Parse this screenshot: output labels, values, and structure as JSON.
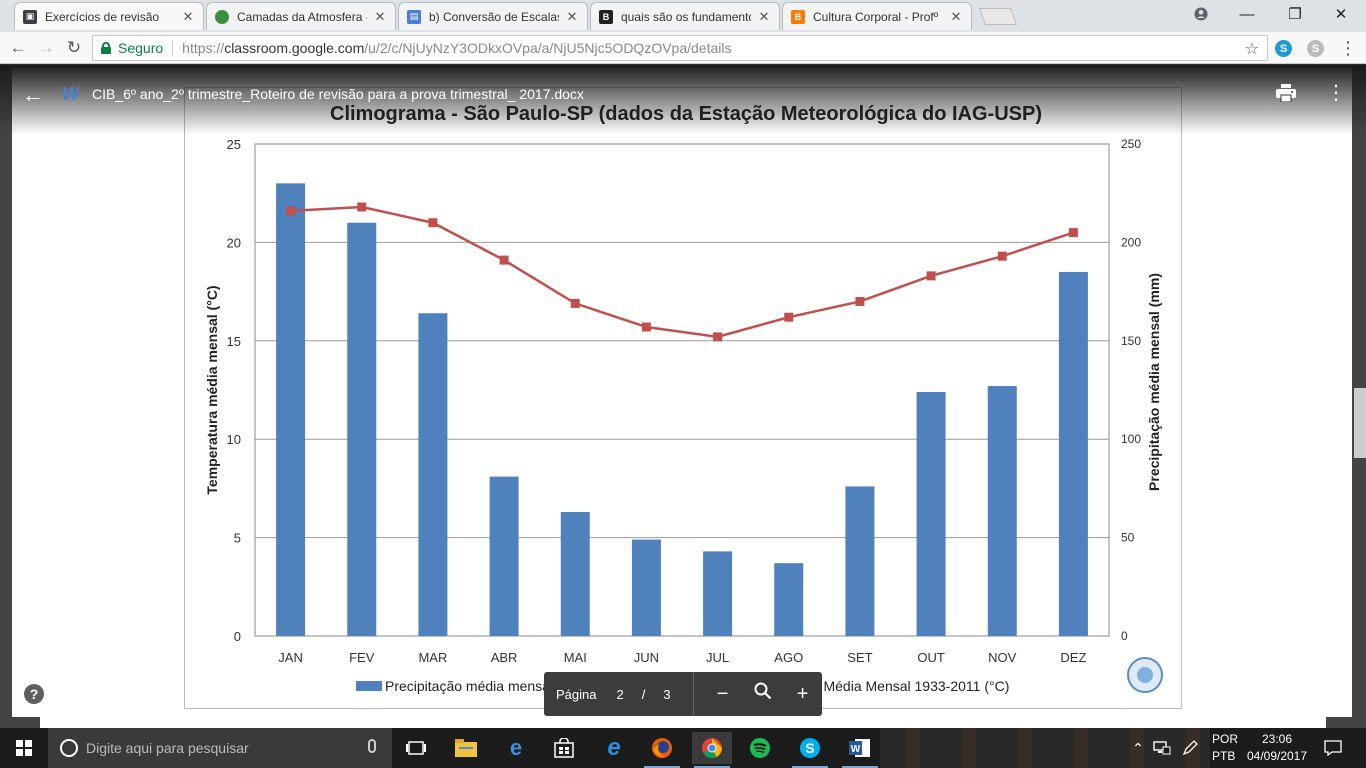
{
  "tabs": [
    {
      "title": "Exercícios de revisão",
      "favicon": "classroom-icon",
      "color": "#3c4043",
      "active": true
    },
    {
      "title": "Camadas da Atmosfera -",
      "favicon": "globe-icon",
      "color": "#3d8f3d",
      "active": false
    },
    {
      "title": "b) Conversão de Escalas",
      "favicon": "docs-icon",
      "color": "#4a7fd4",
      "active": false
    },
    {
      "title": "quais são os fundamento",
      "favicon": "brainly-icon",
      "color": "#222222",
      "active": false
    },
    {
      "title": "Cultura Corporal - Profº",
      "favicon": "blogger-icon",
      "color": "#f57d00",
      "active": false
    }
  ],
  "toolbar": {
    "secure_label": "Seguro",
    "url_scheme": "https://",
    "url_host": "classroom.google.com",
    "url_path": "/u/2/c/NjUyNzY3ODkxOVpa/a/NjU5Njc5ODQzOVpa/details"
  },
  "viewer": {
    "doc_title": "CIB_6º ano_2º trimestre_Roteiro de revisão para a prova trimestral_ 2017.docx",
    "page_label": "Página",
    "page_current": "2",
    "page_sep": "/",
    "page_total": "3"
  },
  "chart_data": {
    "type": "bar",
    "title": "Climograma - São Paulo-SP (dados da Estação Meteorológica do IAG-USP)",
    "categories": [
      "JAN",
      "FEV",
      "MAR",
      "ABR",
      "MAI",
      "JUN",
      "JUL",
      "AGO",
      "SET",
      "OUT",
      "NOV",
      "DEZ"
    ],
    "series": [
      {
        "name": "Precipitação média mensal 1933-2011 (mm)",
        "type": "bar",
        "axis": "right",
        "color": "#4f81bd",
        "values": [
          230,
          210,
          164,
          81,
          63,
          49,
          43,
          37,
          76,
          124,
          127,
          185
        ]
      },
      {
        "name": "Temperatura Média Mensal 1933-2011 (°C)",
        "type": "line",
        "axis": "left",
        "color": "#c0504d",
        "values": [
          21.6,
          21.8,
          21.0,
          19.1,
          16.9,
          15.7,
          15.2,
          16.2,
          17.0,
          18.3,
          19.3,
          20.5
        ]
      }
    ],
    "y_left": {
      "label": "Temperatura média mensal (°C)",
      "ticks": [
        "0",
        "5",
        "10",
        "15",
        "20",
        "25"
      ],
      "lim": [
        0,
        25
      ]
    },
    "y_right": {
      "label": "Precipitação média mensal (mm)",
      "ticks": [
        "0",
        "50",
        "100",
        "150",
        "200",
        "250"
      ],
      "lim": [
        0,
        250
      ]
    },
    "grid": true,
    "legend": "bottom"
  },
  "taskbar": {
    "search_placeholder": "Digite aqui para pesquisar",
    "lang_1": "POR",
    "lang_2": "PTB",
    "time": "23:06",
    "date": "04/09/2017"
  }
}
